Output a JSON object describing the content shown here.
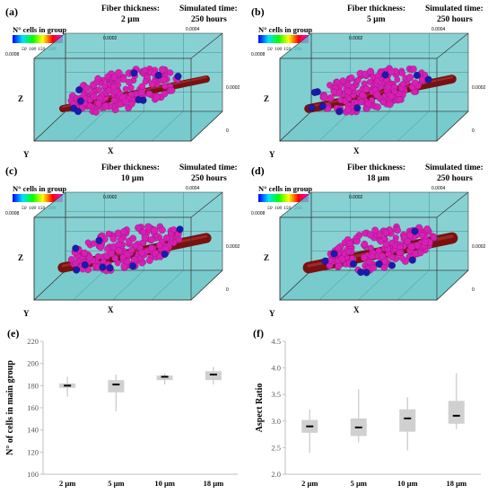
{
  "simulations": [
    {
      "label": "(a)",
      "thickness_title": "Fiber thickness:",
      "thickness": "2 µm",
      "time_title": "Simulated time:",
      "time": "250 hours"
    },
    {
      "label": "(b)",
      "thickness_title": "Fiber thickness:",
      "thickness": "5 µm",
      "time_title": "Simulated time:",
      "time": "250 hours"
    },
    {
      "label": "(c)",
      "thickness_title": "Fiber thickness:",
      "thickness": "10 µm",
      "time_title": "Simulated time:",
      "time": "250 hours"
    },
    {
      "label": "(d)",
      "thickness_title": "Fiber thickness:",
      "thickness": "18 µm",
      "time_title": "Simulated time:",
      "time": "250 hours"
    }
  ],
  "legend": {
    "title": "N° cells in group",
    "ticks": [
      "50",
      "100",
      "150",
      "200"
    ]
  },
  "axes3d": {
    "x": "X",
    "y": "Y",
    "z": "Z",
    "tick_0004": "0.0004",
    "tick_0002": "0.0002",
    "tick_0": "0",
    "tick_0008": "0.0008",
    "tick_0002b": "0.0002"
  },
  "colors": {
    "box": "#5fc2c4",
    "fiber": "#7a1010",
    "cells": "#d81fb4",
    "blue_cells": "#1a1ab0"
  },
  "chart_data": [
    {
      "type": "box",
      "panel_label": "(e)",
      "categories": [
        "2 µm",
        "5 µm",
        "10 µm",
        "18 µm"
      ],
      "ylabel": "N° of cells in main group",
      "ylim": [
        100,
        220
      ],
      "yticks": [
        100,
        120,
        140,
        160,
        180,
        200,
        220
      ],
      "boxes": [
        {
          "min": 170,
          "q1": 178,
          "median": 180,
          "q3": 182,
          "max": 188
        },
        {
          "min": 157,
          "q1": 174,
          "median": 181,
          "q3": 185,
          "max": 190
        },
        {
          "min": 181,
          "q1": 185,
          "median": 188,
          "q3": 189,
          "max": 191
        },
        {
          "min": 181,
          "q1": 185,
          "median": 190,
          "q3": 193,
          "max": 197
        }
      ]
    },
    {
      "type": "box",
      "panel_label": "(f)",
      "categories": [
        "2 µm",
        "5 µm",
        "10 µm",
        "18 µm"
      ],
      "ylabel": "Aspect Ratio",
      "ylim": [
        2.0,
        4.5
      ],
      "yticks": [
        2.0,
        2.5,
        3.0,
        3.5,
        4.0,
        4.5
      ],
      "boxes": [
        {
          "min": 2.4,
          "q1": 2.78,
          "median": 2.9,
          "q3": 3.02,
          "max": 3.22
        },
        {
          "min": 2.6,
          "q1": 2.72,
          "median": 2.88,
          "q3": 3.05,
          "max": 3.6
        },
        {
          "min": 2.45,
          "q1": 2.8,
          "median": 3.05,
          "q3": 3.22,
          "max": 3.45
        },
        {
          "min": 2.85,
          "q1": 2.95,
          "median": 3.1,
          "q3": 3.38,
          "max": 3.9
        }
      ]
    }
  ]
}
